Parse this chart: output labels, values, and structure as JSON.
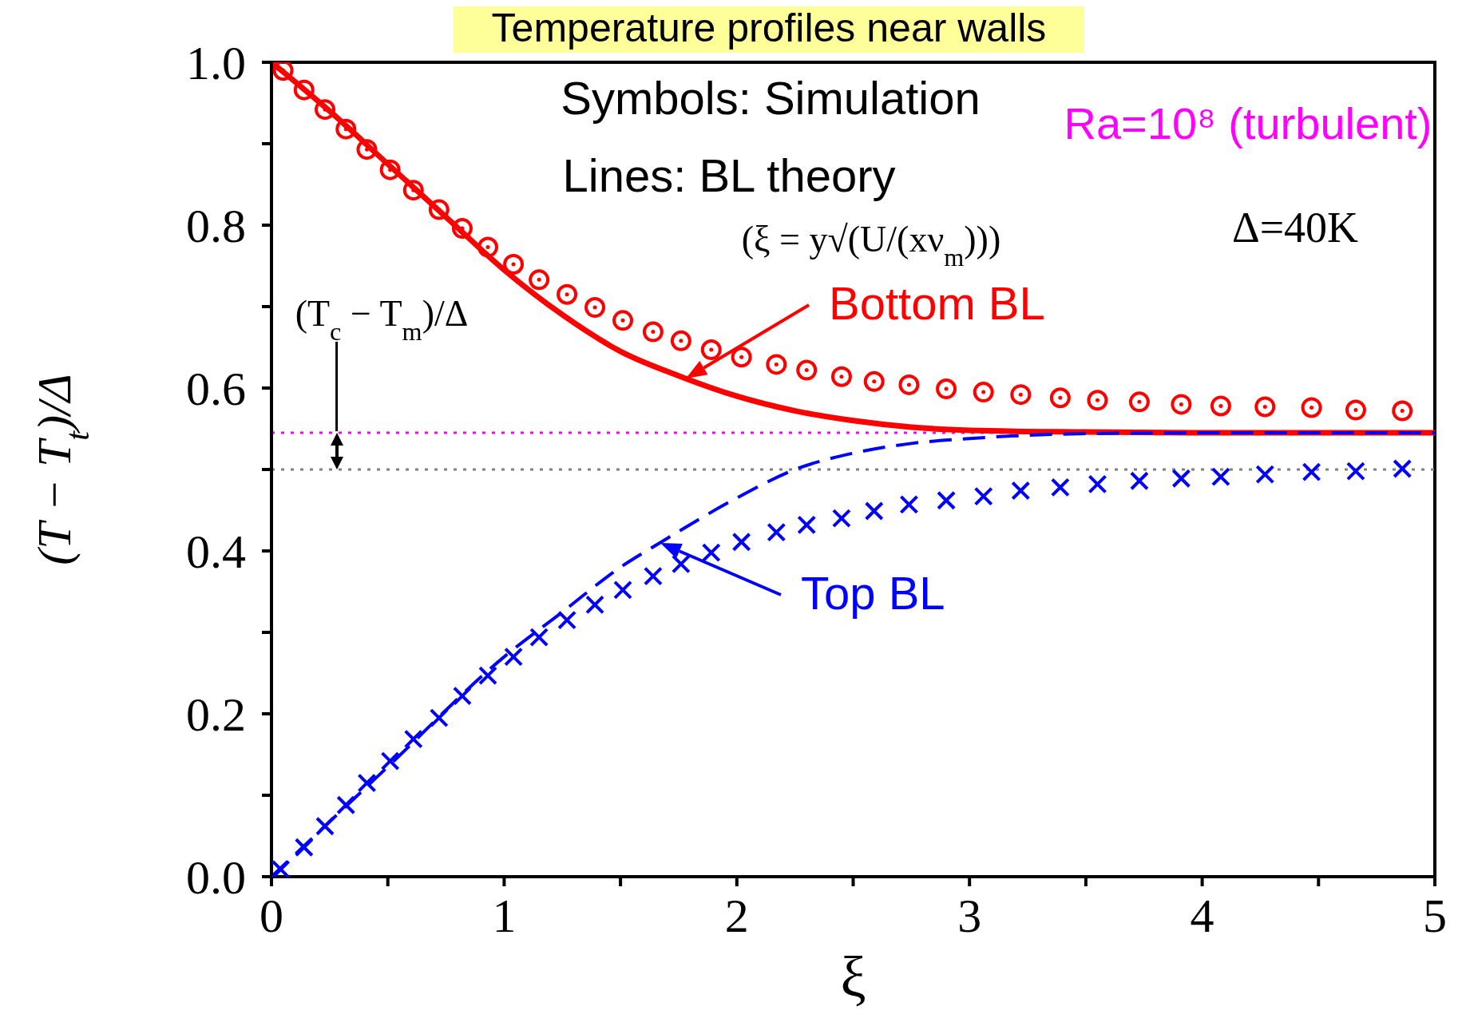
{
  "chart_data": {
    "type": "scatter",
    "title": "Temperature profiles near walls",
    "xlabel": "ξ",
    "ylabel": "(T − T$_{t}$)/Δ",
    "xlim": [
      0,
      5
    ],
    "ylim": [
      0,
      1
    ],
    "xticks": [
      0,
      {
        "value": 0.5,
        "label": null
      },
      1,
      {
        "value": 1.5,
        "label": null
      },
      2,
      {
        "value": 2.5,
        "label": null
      },
      3,
      {
        "value": 3.5,
        "label": null
      },
      4,
      {
        "value": 4.5,
        "label": null
      },
      5
    ],
    "yticks": [
      {
        "value": 0,
        "label": "0.0"
      },
      {
        "value": 0.1,
        "label": null
      },
      0.2,
      {
        "value": 0.3,
        "label": null
      },
      0.4,
      {
        "value": 0.5,
        "label": null
      },
      0.6,
      {
        "value": 0.7,
        "label": null
      },
      0.8,
      {
        "value": 0.9,
        "label": null
      },
      {
        "value": 1,
        "label": "1.0"
      }
    ],
    "series": [
      {
        "color": "#ff0000",
        "marker": "circle",
        "x": [
          0.05,
          0.14,
          0.23,
          0.32,
          0.41,
          0.51,
          0.61,
          0.72,
          0.82,
          0.93,
          1.04,
          1.15,
          1.27,
          1.39,
          1.51,
          1.64,
          1.76,
          1.89,
          2.02,
          2.17,
          2.3,
          2.45,
          2.59,
          2.74,
          2.9,
          3.06,
          3.22,
          3.39,
          3.55,
          3.73,
          3.91,
          4.08,
          4.27,
          4.47,
          4.66,
          4.86
        ],
        "values": [
          0.99,
          0.966,
          0.942,
          0.918,
          0.893,
          0.868,
          0.843,
          0.819,
          0.796,
          0.773,
          0.752,
          0.733,
          0.715,
          0.699,
          0.683,
          0.669,
          0.658,
          0.647,
          0.638,
          0.629,
          0.622,
          0.614,
          0.608,
          0.604,
          0.599,
          0.595,
          0.592,
          0.588,
          0.585,
          0.583,
          0.58,
          0.578,
          0.577,
          0.576,
          0.573,
          0.572
        ]
      },
      {
        "color": "#0000ff",
        "marker": "cross",
        "x": [
          0.04,
          0.14,
          0.23,
          0.32,
          0.41,
          0.51,
          0.61,
          0.72,
          0.82,
          0.93,
          1.04,
          1.15,
          1.27,
          1.39,
          1.51,
          1.64,
          1.76,
          1.89,
          2.02,
          2.17,
          2.3,
          2.45,
          2.59,
          2.74,
          2.9,
          3.06,
          3.22,
          3.39,
          3.55,
          3.73,
          3.91,
          4.08,
          4.27,
          4.47,
          4.66,
          4.86
        ],
        "values": [
          0.009,
          0.036,
          0.062,
          0.088,
          0.115,
          0.142,
          0.169,
          0.195,
          0.222,
          0.247,
          0.27,
          0.294,
          0.315,
          0.334,
          0.352,
          0.369,
          0.384,
          0.398,
          0.411,
          0.423,
          0.432,
          0.44,
          0.449,
          0.457,
          0.462,
          0.467,
          0.474,
          0.478,
          0.482,
          0.486,
          0.489,
          0.491,
          0.494,
          0.497,
          0.498,
          0.501
        ]
      },
      {
        "type": "line",
        "color": "#ff0000",
        "marker": "none",
        "line_style": "solid",
        "x": [
          0,
          0.25,
          0.5,
          0.75,
          1,
          1.25,
          1.5,
          1.75,
          2,
          2.25,
          2.5,
          2.75,
          3,
          3.5,
          4,
          5
        ],
        "values": [
          1,
          0.94,
          0.875,
          0.81,
          0.745,
          0.69,
          0.645,
          0.615,
          0.59,
          0.572,
          0.56,
          0.552,
          0.548,
          0.546,
          0.545,
          0.545
        ]
      },
      {
        "type": "line",
        "color": "#0000ff",
        "marker": "none",
        "line_style": "dashed",
        "x": [
          0,
          0.5,
          1,
          1.25,
          1.5,
          1.67,
          2,
          2.25,
          2.5,
          2.75,
          3,
          3.5,
          4,
          5
        ],
        "values": [
          0,
          0.135,
          0.27,
          0.325,
          0.38,
          0.41,
          0.465,
          0.5,
          0.52,
          0.532,
          0.538,
          0.544,
          0.545,
          0.545
        ]
      }
    ],
    "ref_lines": [
      {
        "axis": "y",
        "value": 0.545,
        "color": "#ff00ff",
        "line_style": "dotted"
      },
      {
        "axis": "y",
        "value": 0.5,
        "color": "#808080",
        "line_style": "dotted"
      }
    ],
    "annotations": [
      "Symbols: Simulation",
      "Lines: BL theory",
      "(ξ = y√(U/(xν$_{m}$)))",
      "Ra=10⁸ (turbulent)",
      "Δ=40K",
      "Bottom BL",
      "Top BL",
      {
        "text": "(T$_{c}$ − T$_{m}$)/Δ",
        "x": 0.28,
        "y": 0.545
      }
    ]
  }
}
